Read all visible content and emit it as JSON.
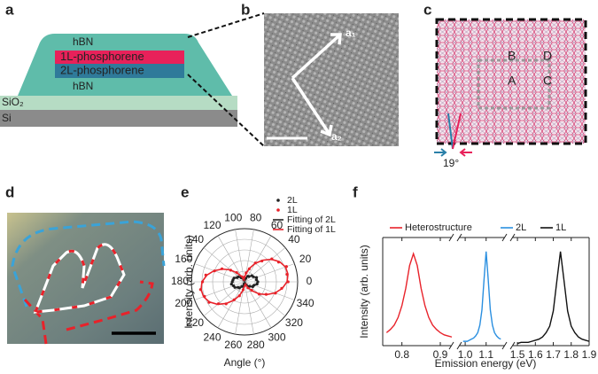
{
  "panel_labels": [
    "a",
    "b",
    "c",
    "d",
    "e",
    "f"
  ],
  "schematic": {
    "layers": [
      "hBN",
      "1L-phosphorene",
      "2L-phosphorene",
      "hBN",
      "SiO₂",
      "Si"
    ]
  },
  "micrograph": {
    "vectors": [
      "a₁",
      "a₂"
    ]
  },
  "moire": {
    "regions": [
      "B",
      "D",
      "A",
      "C"
    ],
    "angle": "19°"
  },
  "chart_data": [
    {
      "type": "polar",
      "xlabel": "Angle (°)",
      "ylabel": "Intensity (arb. units)",
      "theta": [
        0,
        10,
        20,
        30,
        40,
        50,
        60,
        70,
        80,
        90,
        100,
        110,
        120,
        130,
        140,
        150,
        160,
        170,
        180,
        190,
        200,
        210,
        220,
        230,
        240,
        250,
        260,
        270,
        280,
        290,
        300,
        310,
        320,
        330,
        340,
        350
      ],
      "thetaticks": [
        0,
        20,
        40,
        60,
        80,
        100,
        120,
        140,
        160,
        180,
        200,
        220,
        240,
        260,
        280,
        300,
        320,
        340
      ],
      "rlim": [
        0,
        1
      ],
      "rticks": [
        0.2,
        0.4,
        0.6,
        0.8,
        1
      ],
      "series": [
        {
          "name": "2L",
          "color": "#222222",
          "mode": "markers",
          "values": [
            0.25,
            0.23,
            0.24,
            0.19,
            0.18,
            0.13,
            0.12,
            0.07,
            0.06,
            0.03,
            0.05,
            0.04,
            0.09,
            0.1,
            0.15,
            0.16,
            0.21,
            0.22,
            0.23,
            0.25,
            0.22,
            0.21,
            0.16,
            0.15,
            0.1,
            0.09,
            0.04,
            0.05,
            0.03,
            0.06,
            0.07,
            0.12,
            0.13,
            0.18,
            0.19,
            0.24
          ]
        },
        {
          "name": "1L",
          "color": "#e8222a",
          "mode": "markers",
          "values": [
            0.82,
            0.81,
            0.84,
            0.74,
            0.67,
            0.51,
            0.41,
            0.26,
            0.17,
            0.09,
            0.04,
            0.07,
            0.11,
            0.23,
            0.34,
            0.49,
            0.6,
            0.74,
            0.79,
            0.84,
            0.8,
            0.77,
            0.64,
            0.54,
            0.39,
            0.28,
            0.15,
            0.07,
            0.06,
            0.05,
            0.13,
            0.21,
            0.36,
            0.47,
            0.62,
            0.71
          ]
        },
        {
          "name": "Fitting of 2L",
          "color": "#222222",
          "mode": "line",
          "values": [
            0.24,
            0.24,
            0.23,
            0.2,
            0.17,
            0.14,
            0.11,
            0.08,
            0.05,
            0.04,
            0.04,
            0.05,
            0.08,
            0.11,
            0.14,
            0.17,
            0.2,
            0.23,
            0.24,
            0.24,
            0.23,
            0.2,
            0.17,
            0.14,
            0.11,
            0.08,
            0.05,
            0.04,
            0.04,
            0.05,
            0.08,
            0.11,
            0.14,
            0.17,
            0.2,
            0.23
          ]
        },
        {
          "name": "Fitting of 1L",
          "color": "#e8222a",
          "mode": "line",
          "values": [
            0.8,
            0.83,
            0.82,
            0.76,
            0.66,
            0.53,
            0.4,
            0.27,
            0.16,
            0.08,
            0.05,
            0.06,
            0.12,
            0.22,
            0.35,
            0.48,
            0.61,
            0.72,
            0.8,
            0.83,
            0.82,
            0.76,
            0.66,
            0.53,
            0.4,
            0.27,
            0.16,
            0.08,
            0.05,
            0.06,
            0.12,
            0.22,
            0.35,
            0.48,
            0.61,
            0.72
          ]
        }
      ]
    },
    {
      "type": "line",
      "xlabel": "Emission energy (eV)",
      "ylabel": "Intensity (arb. units)",
      "segments": [
        {
          "xlim": [
            0.75,
            0.93
          ],
          "xticks": [
            0.8,
            0.9
          ]
        },
        {
          "xlim": [
            0.97,
            1.19
          ],
          "xticks": [
            {
              "value": 1,
              "label": "1.0"
            },
            1.1
          ]
        },
        {
          "xlim": [
            1.47,
            1.9
          ],
          "xticks": [
            1.5,
            1.6,
            1.7,
            1.8,
            1.9
          ]
        }
      ],
      "ylim": [
        0,
        1
      ],
      "series": [
        {
          "name": "Heterostructure",
          "color": "#e8222a",
          "x": [
            0.76,
            0.77,
            0.78,
            0.79,
            0.8,
            0.81,
            0.82,
            0.83,
            0.84,
            0.85,
            0.86,
            0.87,
            0.88,
            0.89,
            0.9,
            0.91,
            0.92,
            0.93
          ],
          "values": [
            0.12,
            0.15,
            0.19,
            0.26,
            0.37,
            0.53,
            0.74,
            0.85,
            0.74,
            0.53,
            0.37,
            0.26,
            0.19,
            0.15,
            0.12,
            0.1,
            0.09,
            0.08
          ]
        },
        {
          "name": "2L",
          "color": "#2a8fe0",
          "x": [
            0.99,
            1.0,
            1.01,
            1.02,
            1.03,
            1.04,
            1.05,
            1.06,
            1.07,
            1.08,
            1.09,
            1.1,
            1.11,
            1.12,
            1.13,
            1.14,
            1.15,
            1.16,
            1.17
          ],
          "values": [
            0.04,
            0.04,
            0.04,
            0.05,
            0.06,
            0.07,
            0.09,
            0.12,
            0.19,
            0.33,
            0.61,
            0.87,
            0.61,
            0.33,
            0.19,
            0.12,
            0.09,
            0.07,
            0.06
          ]
        },
        {
          "name": "1L",
          "color": "#111111",
          "x": [
            1.5,
            1.52,
            1.54,
            1.56,
            1.58,
            1.6,
            1.62,
            1.64,
            1.66,
            1.68,
            1.7,
            1.72,
            1.74,
            1.76,
            1.78,
            1.8,
            1.82,
            1.84,
            1.86,
            1.88,
            1.9
          ],
          "values": [
            0.02,
            0.03,
            0.03,
            0.03,
            0.04,
            0.05,
            0.06,
            0.08,
            0.12,
            0.18,
            0.32,
            0.6,
            0.87,
            0.6,
            0.32,
            0.18,
            0.12,
            0.08,
            0.06,
            0.05,
            0.04
          ]
        }
      ]
    }
  ]
}
